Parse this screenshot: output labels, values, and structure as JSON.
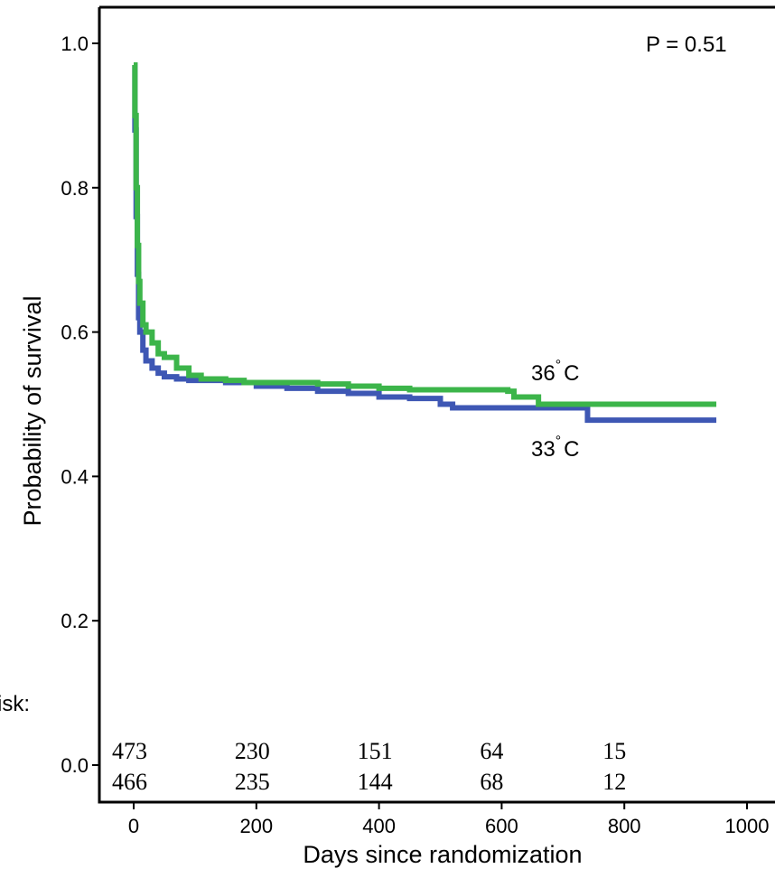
{
  "chart_data": {
    "type": "line",
    "xlabel": "Days since randomization",
    "ylabel": "Probability of survival",
    "xlim": [
      0,
      1000
    ],
    "ylim": [
      0,
      1.0
    ],
    "x_ticks": [
      0,
      200,
      400,
      600,
      800,
      1000
    ],
    "y_ticks": [
      0.0,
      0.2,
      0.4,
      0.6,
      0.8,
      1.0
    ],
    "x_tick_labels": [
      "0",
      "200",
      "400",
      "600",
      "800",
      "1000"
    ],
    "y_tick_labels": [
      "0.0",
      "0.2",
      "0.4",
      "0.6",
      "0.8",
      "1.0"
    ],
    "grid": false,
    "annotation_p": "P = 0.51",
    "risk_label": "isk:",
    "series": [
      {
        "name": "36°C",
        "label_main": "36",
        "label_deg": "°",
        "label_unit": "C",
        "color": "#3cb54a",
        "points": [
          [
            0,
            0.97
          ],
          [
            2,
            0.9
          ],
          [
            4,
            0.8
          ],
          [
            6,
            0.72
          ],
          [
            8,
            0.67
          ],
          [
            10,
            0.64
          ],
          [
            15,
            0.61
          ],
          [
            20,
            0.6
          ],
          [
            30,
            0.585
          ],
          [
            40,
            0.57
          ],
          [
            50,
            0.565
          ],
          [
            70,
            0.55
          ],
          [
            90,
            0.54
          ],
          [
            110,
            0.535
          ],
          [
            150,
            0.533
          ],
          [
            180,
            0.53
          ],
          [
            250,
            0.53
          ],
          [
            300,
            0.528
          ],
          [
            350,
            0.525
          ],
          [
            400,
            0.522
          ],
          [
            450,
            0.52
          ],
          [
            500,
            0.52
          ],
          [
            550,
            0.52
          ],
          [
            610,
            0.518
          ],
          [
            620,
            0.51
          ],
          [
            660,
            0.5
          ],
          [
            740,
            0.5
          ],
          [
            950,
            0.5
          ]
        ],
        "at_risk": [
          473,
          230,
          151,
          64,
          15
        ]
      },
      {
        "name": "33°C",
        "label_main": "33",
        "label_deg": "°",
        "label_unit": "C",
        "color": "#3e57b4",
        "points": [
          [
            0,
            0.97
          ],
          [
            2,
            0.88
          ],
          [
            4,
            0.76
          ],
          [
            6,
            0.68
          ],
          [
            8,
            0.62
          ],
          [
            10,
            0.6
          ],
          [
            15,
            0.575
          ],
          [
            20,
            0.56
          ],
          [
            30,
            0.55
          ],
          [
            40,
            0.543
          ],
          [
            50,
            0.538
          ],
          [
            70,
            0.535
          ],
          [
            90,
            0.533
          ],
          [
            150,
            0.53
          ],
          [
            200,
            0.525
          ],
          [
            250,
            0.522
          ],
          [
            300,
            0.518
          ],
          [
            350,
            0.515
          ],
          [
            400,
            0.51
          ],
          [
            450,
            0.508
          ],
          [
            500,
            0.5
          ],
          [
            520,
            0.495
          ],
          [
            600,
            0.495
          ],
          [
            700,
            0.495
          ],
          [
            740,
            0.478
          ],
          [
            950,
            0.478
          ]
        ],
        "at_risk": [
          466,
          235,
          144,
          68,
          12
        ]
      }
    ],
    "at_risk_x": [
      0,
      200,
      400,
      600,
      800
    ]
  }
}
